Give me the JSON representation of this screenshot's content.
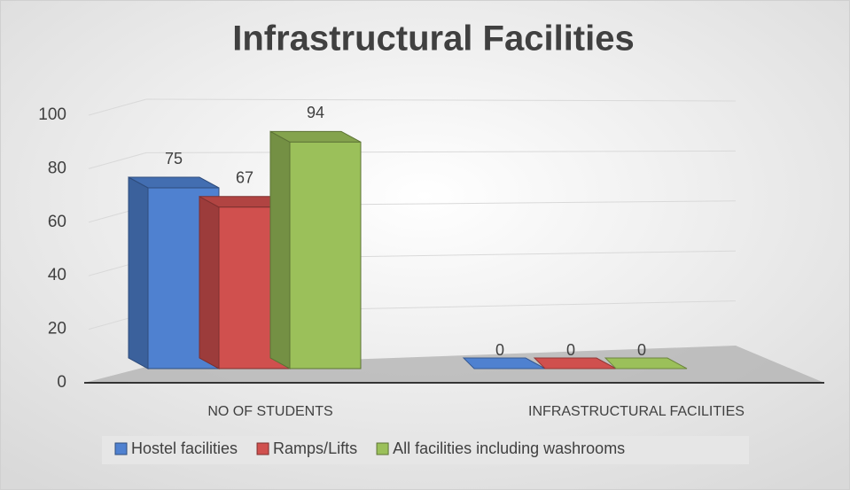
{
  "chart_data": {
    "type": "bar3d",
    "title": "Infrastructural Facilities",
    "categories": [
      "NO OF STUDENTS",
      "INFRASTRUCTURAL FACILITIES"
    ],
    "series": [
      {
        "name": "Hostel facilities",
        "color": "#4f81d0",
        "values": [
          75,
          0
        ]
      },
      {
        "name": "Ramps/Lifts",
        "color": "#d0504e",
        "values": [
          67,
          0
        ]
      },
      {
        "name": "All facilities including washrooms",
        "color": "#9bc05a",
        "values": [
          94,
          0
        ]
      }
    ],
    "ylim": [
      0,
      100
    ],
    "yticks": [
      0,
      20,
      40,
      60,
      80,
      100
    ],
    "grid": true,
    "legend": "bottom"
  }
}
